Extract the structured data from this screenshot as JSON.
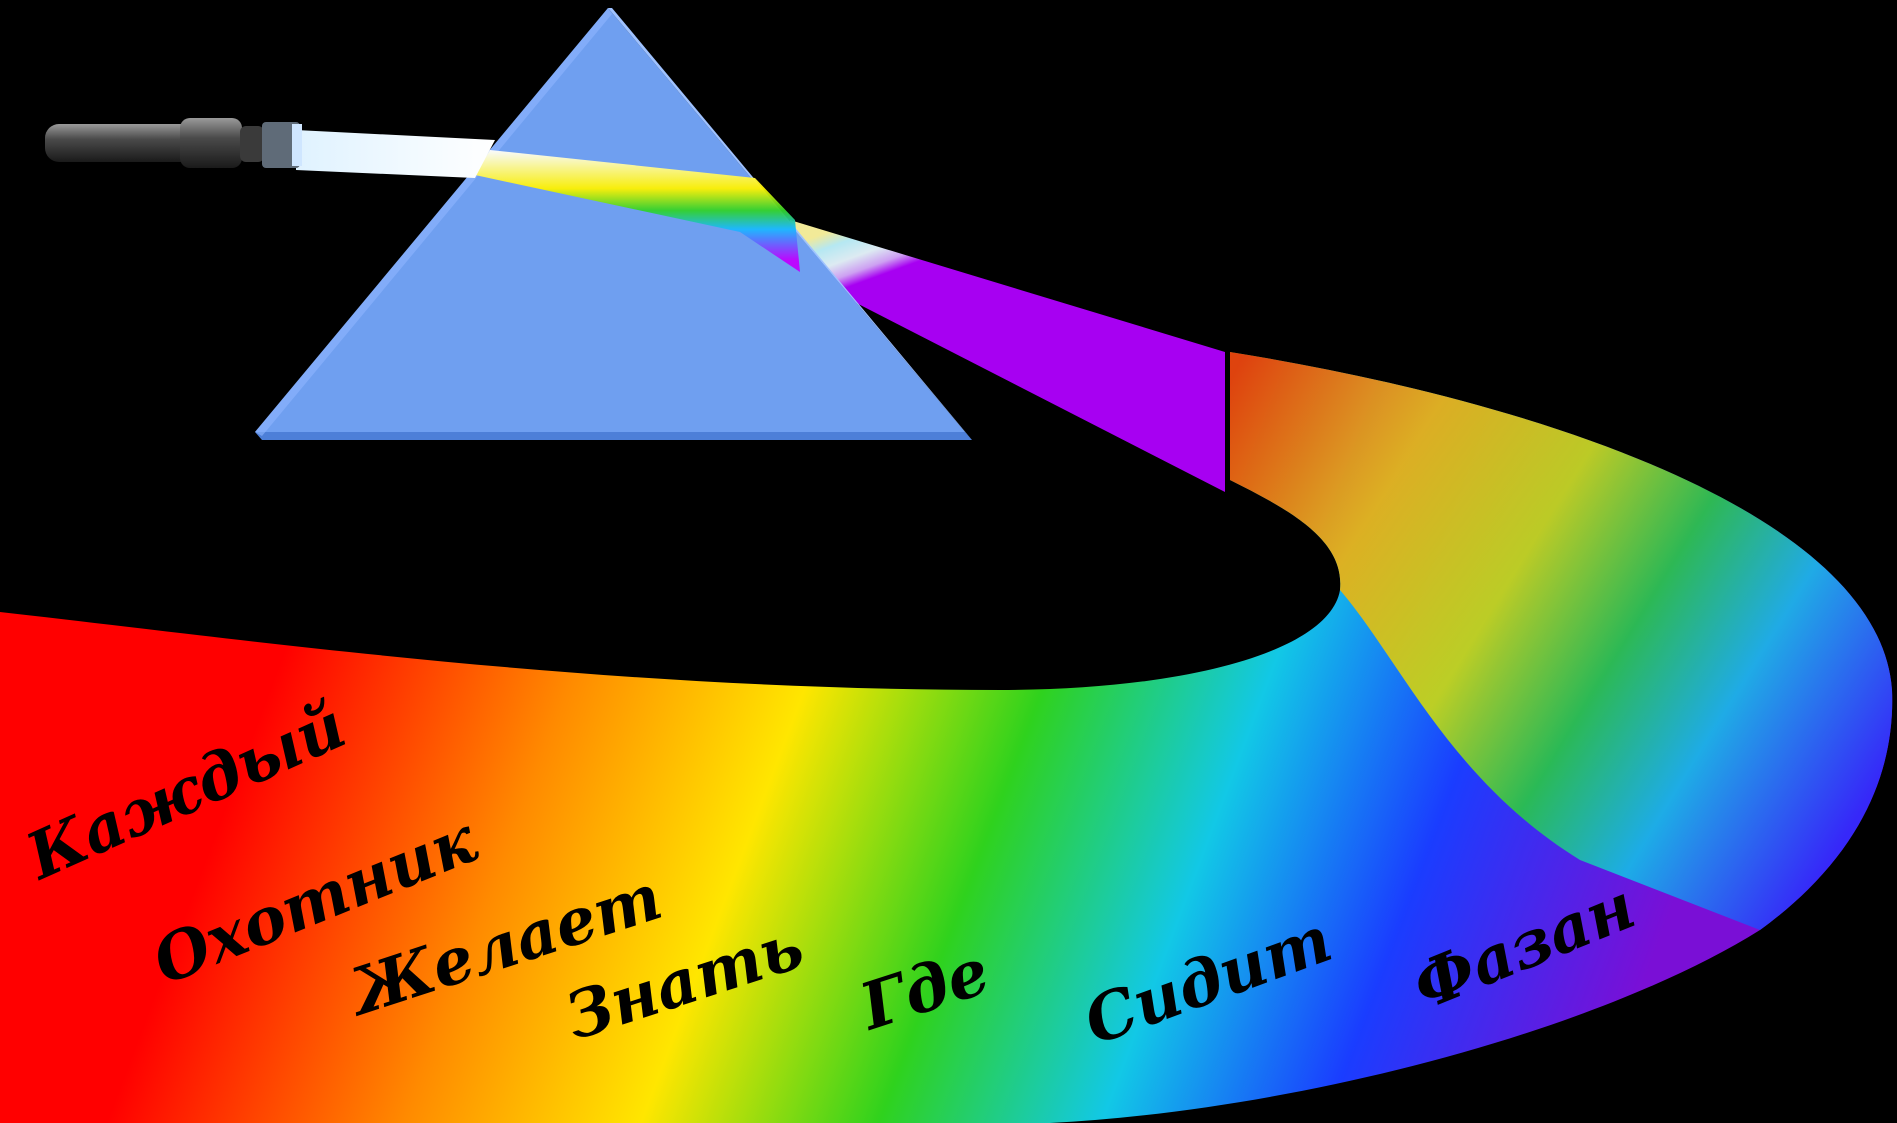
{
  "mnemonic": {
    "words": [
      "Каждый",
      "Охотник",
      "Желает",
      "Знать",
      "Где",
      "Сидит",
      "Фазан"
    ]
  },
  "colors": {
    "background": "#000000",
    "prism_face": "#6f9ff0",
    "prism_edge": "#9fc2ff",
    "spectrum": [
      "#ff0000",
      "#ff8a00",
      "#ffe600",
      "#2fd21d",
      "#12c8e6",
      "#1a3dff",
      "#7a0fd6"
    ]
  },
  "icons": [
    "flashlight-icon",
    "prism-icon"
  ]
}
